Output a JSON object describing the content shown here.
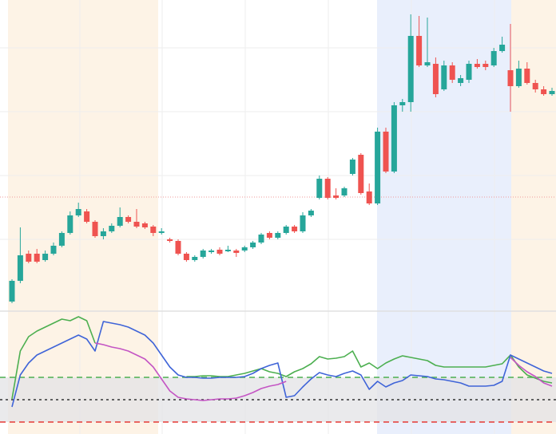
{
  "chart_data": [
    {
      "type": "candlestick",
      "up_color": "#26a69a",
      "down_color": "#ef5350",
      "ylim": [
        0,
        390
      ],
      "price_line": {
        "value": 143,
        "color": "#ef9a9a"
      },
      "open": [
        12,
        38,
        72,
        72,
        64,
        72,
        82,
        98,
        120,
        125,
        112,
        94,
        100,
        107,
        118,
        112,
        110,
        106,
        98,
        90,
        88,
        72,
        64,
        68,
        74,
        77,
        75,
        76,
        76,
        80,
        86,
        98,
        92,
        98,
        106,
        100,
        120,
        142,
        166,
        145,
        145,
        172,
        196,
        150,
        135,
        225,
        175,
        258,
        262,
        345,
        308,
        310,
        278,
        308,
        286,
        290,
        310,
        310,
        308,
        326,
        302,
        282,
        304,
        286,
        278,
        272
      ],
      "high": [
        40,
        105,
        76,
        78,
        76,
        86,
        100,
        125,
        136,
        128,
        114,
        104,
        110,
        130,
        120,
        128,
        112,
        108,
        104,
        92,
        90,
        74,
        70,
        78,
        78,
        80,
        82,
        78,
        82,
        88,
        98,
        100,
        100,
        108,
        108,
        124,
        128,
        170,
        168,
        154,
        156,
        192,
        198,
        160,
        230,
        230,
        262,
        266,
        372,
        370,
        368,
        318,
        314,
        312,
        296,
        314,
        316,
        314,
        330,
        344,
        360,
        314,
        312,
        290,
        282,
        280
      ],
      "low": [
        10,
        35,
        60,
        60,
        62,
        70,
        80,
        96,
        118,
        110,
        92,
        90,
        98,
        105,
        110,
        104,
        103,
        94,
        96,
        86,
        70,
        62,
        62,
        66,
        72,
        70,
        74,
        68,
        74,
        78,
        84,
        90,
        90,
        96,
        98,
        98,
        118,
        140,
        140,
        140,
        143,
        170,
        146,
        133,
        133,
        173,
        173,
        250,
        250,
        306,
        306,
        268,
        276,
        286,
        282,
        286,
        304,
        302,
        306,
        324,
        250,
        280,
        284,
        274,
        270,
        270
      ],
      "close": [
        38,
        70,
        62,
        62,
        72,
        82,
        98,
        120,
        128,
        112,
        94,
        100,
        107,
        118,
        112,
        106,
        105,
        98,
        100,
        88,
        72,
        64,
        68,
        76,
        76,
        72,
        77,
        73,
        80,
        86,
        96,
        92,
        98,
        106,
        100,
        120,
        126,
        166,
        142,
        142,
        154,
        190,
        148,
        135,
        225,
        175,
        258,
        262,
        345,
        308,
        312,
        272,
        308,
        290,
        292,
        310,
        306,
        306,
        326,
        334,
        282,
        304,
        286,
        278,
        272,
        276
      ]
    },
    {
      "type": "line",
      "ylim": [
        0,
        154
      ],
      "band_color": "#e3e3e6",
      "levels": [
        {
          "value": 71,
          "color": "#4caf50",
          "style": "dashed"
        },
        {
          "value": 43,
          "color": "#333333",
          "style": "dotted"
        },
        {
          "value": 15,
          "color": "#e53935",
          "style": "dashed"
        }
      ],
      "series": [
        {
          "color": "#4caf50",
          "values": [
            44,
            104,
            122,
            129,
            134,
            139,
            144,
            142,
            147,
            142,
            114,
            null,
            null,
            null,
            null,
            null,
            null,
            null,
            null,
            null,
            null,
            72,
            72,
            73,
            73,
            72,
            72,
            74,
            76,
            79,
            82,
            78,
            76,
            72,
            78,
            82,
            88,
            97,
            94,
            95,
            97,
            104,
            84,
            89,
            82,
            89,
            94,
            98,
            96,
            94,
            92,
            86,
            84,
            84,
            84,
            84,
            84,
            84,
            86,
            88,
            99,
            84,
            74,
            70,
            66,
            64
          ]
        },
        {
          "color": "#3f64d8",
          "values": [
            34,
            74,
            89,
            99,
            104,
            109,
            114,
            119,
            124,
            119,
            104,
            141,
            139,
            137,
            134,
            129,
            124,
            114,
            99,
            84,
            74,
            71,
            71,
            70,
            70,
            71,
            71,
            71,
            72,
            76,
            82,
            86,
            89,
            46,
            48,
            59,
            69,
            77,
            74,
            72,
            76,
            79,
            74,
            56,
            66,
            59,
            64,
            67,
            74,
            73,
            72,
            69,
            68,
            66,
            64,
            60,
            60,
            60,
            61,
            66,
            99,
            94,
            89,
            84,
            79,
            76
          ]
        },
        {
          "color": "#c455c4",
          "values": [
            null,
            null,
            null,
            null,
            null,
            null,
            null,
            null,
            null,
            null,
            114,
            112,
            109,
            107,
            104,
            99,
            94,
            84,
            69,
            54,
            46,
            44,
            43,
            42,
            43,
            44,
            44,
            45,
            48,
            52,
            57,
            60,
            62,
            66,
            null,
            null,
            null,
            null,
            null,
            null,
            null,
            null,
            null,
            null,
            null,
            null,
            null,
            null,
            null,
            null,
            null,
            null,
            null,
            null,
            null,
            null,
            null,
            null,
            null,
            null,
            96,
            86,
            78,
            72,
            64,
            60
          ]
        }
      ]
    }
  ]
}
